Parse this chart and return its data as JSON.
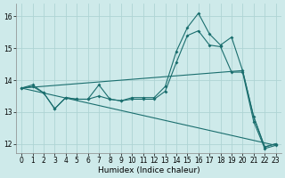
{
  "xlabel": "Humidex (Indice chaleur)",
  "background_color": "#ceeaea",
  "grid_color": "#aed4d4",
  "line_color": "#1a6e6e",
  "xlim": [
    -0.5,
    23.5
  ],
  "ylim": [
    11.7,
    16.4
  ],
  "yticks": [
    12,
    13,
    14,
    15,
    16
  ],
  "xticks": [
    0,
    1,
    2,
    3,
    4,
    5,
    6,
    7,
    8,
    9,
    10,
    11,
    12,
    13,
    14,
    15,
    16,
    17,
    18,
    19,
    20,
    21,
    22,
    23
  ],
  "line1_x": [
    0,
    1,
    2,
    3,
    4,
    5,
    6,
    7,
    8,
    9,
    10,
    11,
    12,
    13,
    14,
    15,
    16,
    17,
    18,
    19,
    20,
    21,
    22,
    23
  ],
  "line1_y": [
    13.75,
    13.85,
    13.6,
    13.1,
    13.45,
    13.4,
    13.4,
    13.85,
    13.4,
    13.35,
    13.45,
    13.45,
    13.45,
    13.8,
    14.9,
    15.65,
    16.1,
    15.45,
    15.1,
    15.35,
    14.3,
    12.85,
    11.9,
    12.0
  ],
  "line2_x": [
    0,
    1,
    2,
    3,
    4,
    5,
    6,
    7,
    8,
    9,
    10,
    11,
    12,
    13,
    14,
    15,
    16,
    17,
    18,
    19,
    20,
    21,
    22,
    23
  ],
  "line2_y": [
    13.75,
    13.8,
    13.6,
    13.1,
    13.45,
    13.4,
    13.4,
    13.5,
    13.4,
    13.35,
    13.4,
    13.4,
    13.4,
    13.65,
    14.55,
    15.4,
    15.55,
    15.1,
    15.05,
    14.25,
    14.25,
    12.7,
    11.85,
    11.95
  ],
  "line3_x": [
    0,
    23
  ],
  "line3_y": [
    13.75,
    11.95
  ],
  "line4_x": [
    0,
    20,
    21,
    22,
    23
  ],
  "line4_y": [
    13.75,
    14.3,
    12.85,
    11.9,
    12.0
  ]
}
